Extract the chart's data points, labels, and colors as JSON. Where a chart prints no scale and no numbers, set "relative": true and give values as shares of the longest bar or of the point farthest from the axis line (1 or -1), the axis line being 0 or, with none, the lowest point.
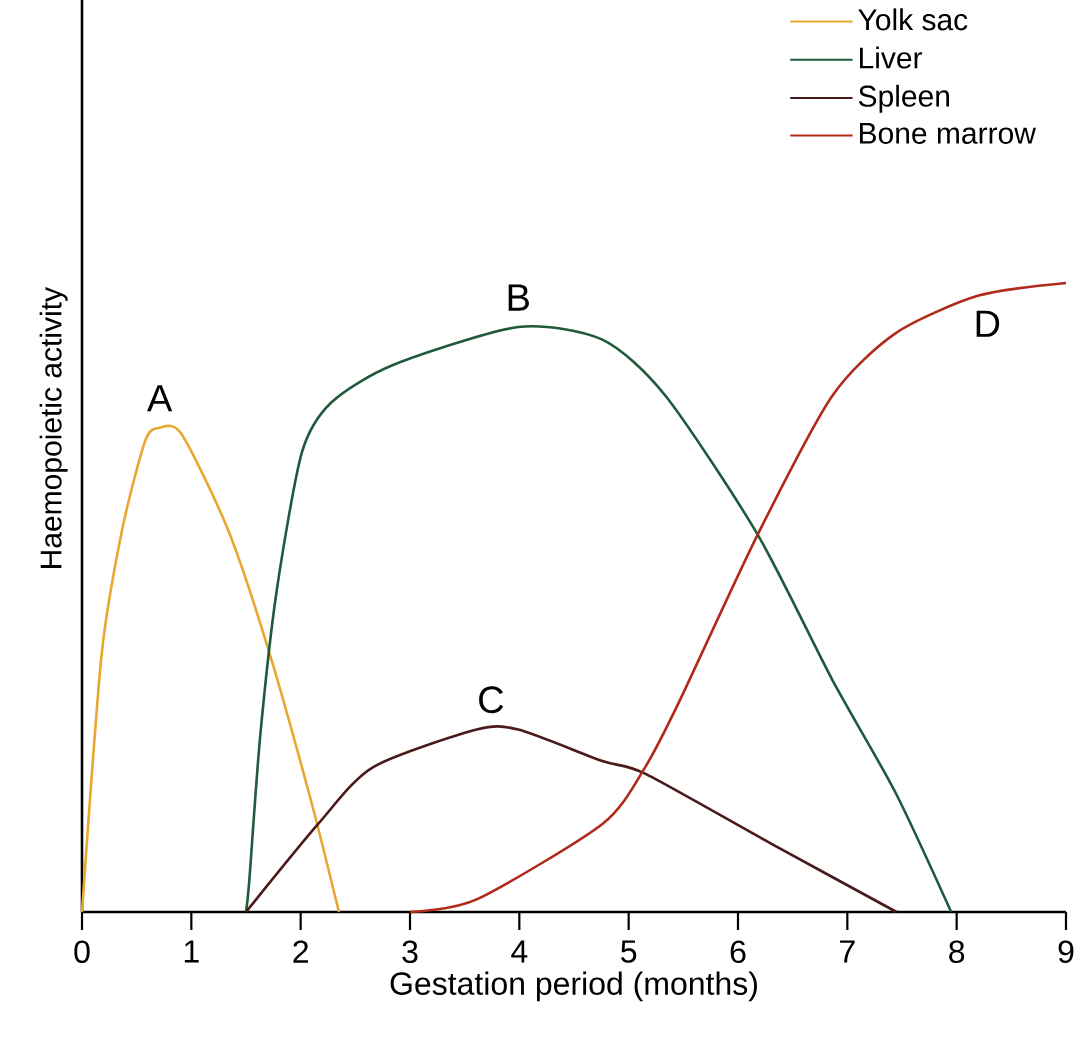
{
  "chart_data": {
    "type": "line",
    "relative": true,
    "xlabel": "Gestation period (months)",
    "ylabel": "Haemopoietic activity",
    "xlim": [
      0,
      9
    ],
    "xticks": [
      0,
      1,
      2,
      3,
      4,
      5,
      6,
      7,
      8,
      9
    ],
    "legend": "top right",
    "marker": "none",
    "line_style": "solid",
    "grid": false,
    "series": [
      {
        "name": "Yolk sac",
        "color": "#e8a830",
        "x": [
          0,
          0.18,
          0.37,
          0.58,
          0.71,
          0.91,
          1.33,
          1.7,
          2.09,
          2.35
        ],
        "values": [
          0,
          0.41,
          0.61,
          0.75,
          0.77,
          0.76,
          0.61,
          0.42,
          0.18,
          0
        ]
      },
      {
        "name": "Liver",
        "color": "#1f5a3a",
        "x": [
          1.5,
          1.53,
          1.63,
          1.78,
          2.01,
          2.28,
          2.85,
          3.99,
          4.76,
          5.34,
          6.18,
          6.86,
          7.44,
          7.95
        ],
        "values": [
          0,
          0.05,
          0.28,
          0.51,
          0.73,
          0.81,
          0.87,
          0.93,
          0.91,
          0.82,
          0.6,
          0.37,
          0.19,
          0
        ]
      },
      {
        "name": "Spleen",
        "color": "#4a1a1a",
        "x": [
          1.5,
          2.16,
          2.66,
          3.61,
          3.99,
          4.76,
          5.15,
          6.29,
          7.45
        ],
        "values": [
          0,
          0.14,
          0.23,
          0.29,
          0.29,
          0.24,
          0.22,
          0.11,
          0
        ]
      },
      {
        "name": "Bone marrow",
        "color": "#b02a1a",
        "x": [
          3.0,
          3.61,
          4.76,
          5.15,
          5.45,
          6.18,
          6.86,
          7.44,
          8.2,
          9.0
        ],
        "values": [
          0,
          0.02,
          0.14,
          0.23,
          0.33,
          0.6,
          0.82,
          0.92,
          0.98,
          1.0
        ]
      }
    ],
    "annotations": [
      {
        "text": "A",
        "x": 0.71,
        "y": 0.77
      },
      {
        "text": "B",
        "x": 3.99,
        "y": 0.93
      },
      {
        "text": "C",
        "x": 3.74,
        "y": 0.29
      },
      "D"
    ]
  }
}
